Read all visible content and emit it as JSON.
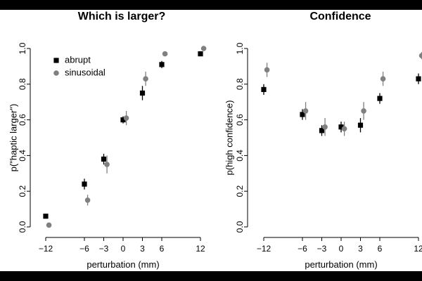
{
  "chart_data": [
    {
      "type": "scatter",
      "title": "Which is larger?",
      "xlabel": "perturbation (mm)",
      "ylabel": "p(\"haptic larger\")",
      "xlim": [
        -13,
        12.5
      ],
      "ylim": [
        0,
        1
      ],
      "x_ticks": [
        -12,
        -6,
        -3,
        0,
        3,
        6,
        12
      ],
      "y_ticks": [
        0.0,
        0.2,
        0.4,
        0.6,
        0.8,
        1.0
      ],
      "x_tick_labels": [
        "−12",
        "−6",
        "−3",
        "0",
        "3",
        "6",
        "12"
      ],
      "y_tick_labels": [
        "0.0",
        "0.2",
        "0.4",
        "0.6",
        "0.8",
        "1.0"
      ],
      "legend": {
        "placement": "top-left",
        "entries": [
          "abrupt",
          "sinusoidal"
        ]
      },
      "series": [
        {
          "name": "abrupt",
          "marker": "square",
          "color": "#000000",
          "points": [
            {
              "x": -12,
              "y": 0.06,
              "err": 0.0
            },
            {
              "x": -6,
              "y": 0.24,
              "err": 0.03
            },
            {
              "x": -3,
              "y": 0.38,
              "err": 0.03
            },
            {
              "x": 0,
              "y": 0.6,
              "err": 0.02
            },
            {
              "x": 3,
              "y": 0.75,
              "err": 0.04
            },
            {
              "x": 6,
              "y": 0.91,
              "err": 0.02
            },
            {
              "x": 12,
              "y": 0.97,
              "err": 0.01
            }
          ]
        },
        {
          "name": "sinusoidal",
          "marker": "circle",
          "color": "#808080",
          "points": [
            {
              "x": -11.5,
              "y": 0.01,
              "err": 0.0
            },
            {
              "x": -5.5,
              "y": 0.15,
              "err": 0.03
            },
            {
              "x": -2.5,
              "y": 0.35,
              "err": 0.05
            },
            {
              "x": 0.5,
              "y": 0.61,
              "err": 0.04
            },
            {
              "x": 3.5,
              "y": 0.83,
              "err": 0.04
            },
            {
              "x": 6.5,
              "y": 0.97,
              "err": 0.01
            },
            {
              "x": 12.5,
              "y": 1.0,
              "err": 0.0
            }
          ]
        }
      ]
    },
    {
      "type": "scatter",
      "title": "Confidence",
      "xlabel": "perturbation (mm)",
      "ylabel": "p(high confidence)",
      "xlim": [
        -13,
        12.5
      ],
      "ylim": [
        0,
        1
      ],
      "x_ticks": [
        -12,
        -6,
        -3,
        0,
        3,
        6,
        12
      ],
      "y_ticks": [
        0.0,
        0.2,
        0.4,
        0.6,
        0.8,
        1.0
      ],
      "x_tick_labels": [
        "−12",
        "−6",
        "−3",
        "0",
        "3",
        "6",
        "12"
      ],
      "y_tick_labels": [
        "0.0",
        "0.2",
        "0.4",
        "0.6",
        "0.8",
        "1.0"
      ],
      "series": [
        {
          "name": "abrupt",
          "marker": "square",
          "color": "#000000",
          "points": [
            {
              "x": -12,
              "y": 0.77,
              "err": 0.03
            },
            {
              "x": -6,
              "y": 0.63,
              "err": 0.03
            },
            {
              "x": -3,
              "y": 0.54,
              "err": 0.03
            },
            {
              "x": 0,
              "y": 0.56,
              "err": 0.03
            },
            {
              "x": 3,
              "y": 0.57,
              "err": 0.04
            },
            {
              "x": 6,
              "y": 0.72,
              "err": 0.03
            },
            {
              "x": 12,
              "y": 0.83,
              "err": 0.03
            }
          ]
        },
        {
          "name": "sinusoidal",
          "marker": "circle",
          "color": "#808080",
          "points": [
            {
              "x": -11.5,
              "y": 0.88,
              "err": 0.04
            },
            {
              "x": -5.5,
              "y": 0.65,
              "err": 0.05
            },
            {
              "x": -2.5,
              "y": 0.56,
              "err": 0.05
            },
            {
              "x": 0.5,
              "y": 0.55,
              "err": 0.04
            },
            {
              "x": 3.5,
              "y": 0.65,
              "err": 0.05
            },
            {
              "x": 6.5,
              "y": 0.83,
              "err": 0.04
            },
            {
              "x": 12.5,
              "y": 0.96,
              "err": 0.02
            }
          ]
        }
      ]
    }
  ]
}
